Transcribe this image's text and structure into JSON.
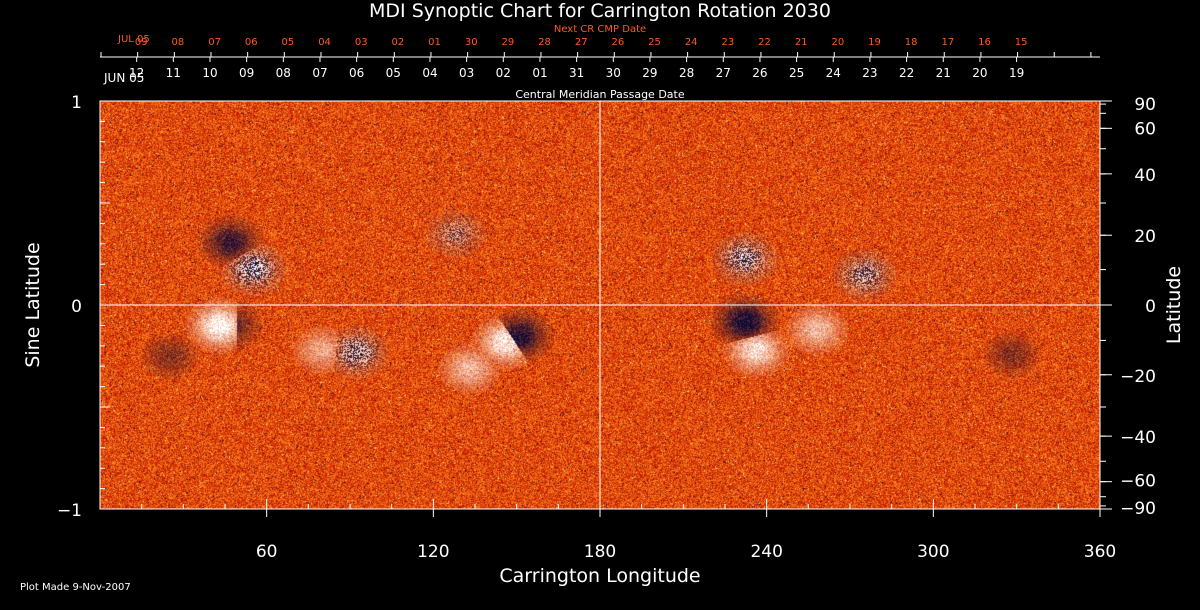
{
  "chart_data": {
    "type": "heatmap",
    "title": "MDI Synoptic Chart for Carrington Rotation 2030",
    "xlabel": "Carrington Longitude",
    "ylabel_left": "Sine Latitude",
    "ylabel_right": "Latitude",
    "xlim": [
      0,
      360
    ],
    "ylim": [
      -1,
      1
    ],
    "x_ticks": [
      60,
      120,
      180,
      240,
      300,
      360
    ],
    "y_ticks_left": [
      {
        "value": 1,
        "label": "1"
      },
      {
        "value": 0,
        "label": "0"
      },
      {
        "value": -1,
        "label": "−1"
      }
    ],
    "y_ticks_right": [
      {
        "deg": 90,
        "label": "90"
      },
      {
        "deg": 60,
        "label": "60"
      },
      {
        "deg": 40,
        "label": "40"
      },
      {
        "deg": 20,
        "label": "20"
      },
      {
        "deg": 0,
        "label": "0"
      },
      {
        "deg": -20,
        "label": "−20"
      },
      {
        "deg": -40,
        "label": "−40"
      },
      {
        "deg": -60,
        "label": "−60"
      },
      {
        "deg": -90,
        "label": "−90"
      }
    ],
    "top_axis_title": "Central Meridian Passage Date",
    "top_axis_month": "JUN 05",
    "top_axis_dates": [
      "12",
      "11",
      "10",
      "09",
      "08",
      "07",
      "06",
      "05",
      "04",
      "03",
      "02",
      "01",
      "31",
      "30",
      "29",
      "28",
      "27",
      "26",
      "25",
      "24",
      "23",
      "22",
      "21",
      "20",
      "19"
    ],
    "top_axis_date_positions": [
      6,
      10,
      14,
      18,
      22,
      26,
      30,
      34,
      38,
      42,
      46,
      50,
      54,
      58,
      62,
      66,
      70,
      74,
      78,
      82,
      86,
      90,
      94,
      98,
      102
    ],
    "next_axis_title": "Next CR CMP Date",
    "next_axis_month": "JUL 05",
    "next_axis_dates": [
      "09",
      "08",
      "07",
      "06",
      "05",
      "04",
      "03",
      "02",
      "01",
      "30",
      "29",
      "28",
      "27",
      "26",
      "25",
      "24",
      "23",
      "22",
      "21",
      "20",
      "19",
      "18",
      "17",
      "16",
      "15"
    ],
    "next_axis_date_positions": [
      6.5,
      10.5,
      14.5,
      18.5,
      22.5,
      26.5,
      30.5,
      34.5,
      38.5,
      42.5,
      46.5,
      50.5,
      54.5,
      58.5,
      62.5,
      66.5,
      70.5,
      74.5,
      78.5,
      82.5,
      86.5,
      90.5,
      94.5,
      98.5,
      102.5
    ],
    "meridian_line_longitude": 180,
    "equator_line_sinlat": 0,
    "colors": {
      "background_low": "#b81000",
      "background_mid": "#e04a0c",
      "background_high": "#ff8a20",
      "positive_polarity": "#ffffff",
      "negative_polarity": "#0a0a3a",
      "next_axis_text": "#ff5a1a"
    },
    "active_regions": [
      {
        "lon": 47,
        "sinlat": 0.31,
        "polarity": "negative",
        "strength": 0.8
      },
      {
        "lon": 55,
        "sinlat": 0.18,
        "polarity": "mixed",
        "strength": 0.9
      },
      {
        "lon": 43,
        "sinlat": -0.1,
        "polarity": "positive",
        "strength": 1.0
      },
      {
        "lon": 47,
        "sinlat": -0.1,
        "polarity": "negative",
        "strength": 0.6
      },
      {
        "lon": 92,
        "sinlat": -0.23,
        "polarity": "mixed",
        "strength": 0.8
      },
      {
        "lon": 128,
        "sinlat": 0.35,
        "polarity": "mixed",
        "strength": 0.5
      },
      {
        "lon": 146,
        "sinlat": -0.18,
        "polarity": "positive",
        "strength": 0.9
      },
      {
        "lon": 151,
        "sinlat": -0.15,
        "polarity": "negative",
        "strength": 0.9
      },
      {
        "lon": 133,
        "sinlat": -0.31,
        "polarity": "positive",
        "strength": 0.6
      },
      {
        "lon": 232,
        "sinlat": 0.23,
        "polarity": "mixed",
        "strength": 0.8
      },
      {
        "lon": 275,
        "sinlat": 0.15,
        "polarity": "mixed",
        "strength": 0.7
      },
      {
        "lon": 232,
        "sinlat": -0.08,
        "polarity": "negative",
        "strength": 1.0
      },
      {
        "lon": 236,
        "sinlat": -0.22,
        "polarity": "positive",
        "strength": 0.8
      },
      {
        "lon": 258,
        "sinlat": -0.12,
        "polarity": "positive",
        "strength": 0.6
      },
      {
        "lon": 328,
        "sinlat": -0.24,
        "polarity": "negative",
        "strength": 0.4
      },
      {
        "lon": 80,
        "sinlat": -0.22,
        "polarity": "positive",
        "strength": 0.5
      },
      {
        "lon": 25,
        "sinlat": -0.25,
        "polarity": "negative",
        "strength": 0.4
      }
    ]
  },
  "footer": {
    "plot_made": "Plot Made  9-Nov-2007"
  }
}
